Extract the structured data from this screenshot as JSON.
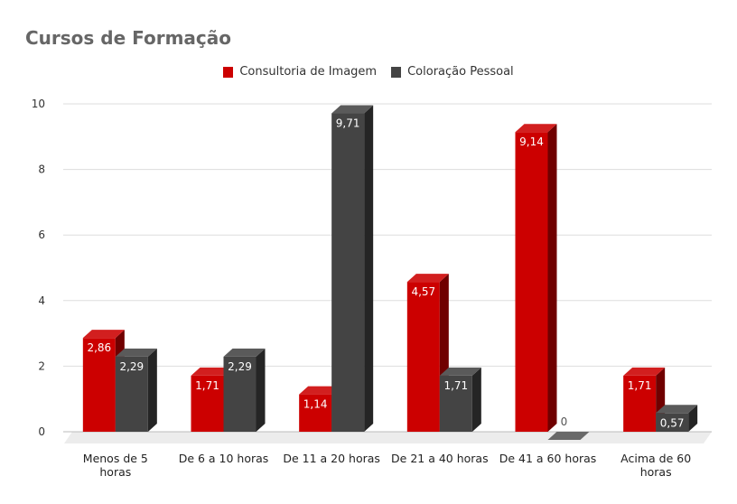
{
  "chart_data": {
    "type": "bar",
    "title": "Cursos de Formação",
    "categories": [
      "Menos de 5 horas",
      "De 6 a 10 horas",
      "De 11 a 20 horas",
      "De 21 a 40 horas",
      "De 41 a 60 horas",
      "Acima de 60 horas"
    ],
    "category_lines": [
      [
        "Menos de 5",
        "horas"
      ],
      [
        "De 6 a 10 horas"
      ],
      [
        "De 11 a 20 horas"
      ],
      [
        "De 21 a 40 horas"
      ],
      [
        "De 41 a 60 horas"
      ],
      [
        "Acima de 60",
        "horas"
      ]
    ],
    "series": [
      {
        "name": "Consultoria de Imagem",
        "color": "#cc0000",
        "values": [
          2.86,
          1.71,
          1.14,
          4.57,
          9.14,
          1.71
        ],
        "labels": [
          "2,86",
          "1,71",
          "1,14",
          "4,57",
          "9,14",
          "1,71"
        ]
      },
      {
        "name": "Coloração Pessoal",
        "color": "#444444",
        "values": [
          2.29,
          2.29,
          9.71,
          1.71,
          0,
          0.57
        ],
        "labels": [
          "2,29",
          "2,29",
          "9,71",
          "1,71",
          "0",
          "0,57"
        ]
      }
    ],
    "ylim": [
      0,
      10
    ],
    "yticks": [
      0,
      2,
      4,
      6,
      8,
      10
    ],
    "legend_position": "top-center",
    "grid": true,
    "style": "3d"
  }
}
